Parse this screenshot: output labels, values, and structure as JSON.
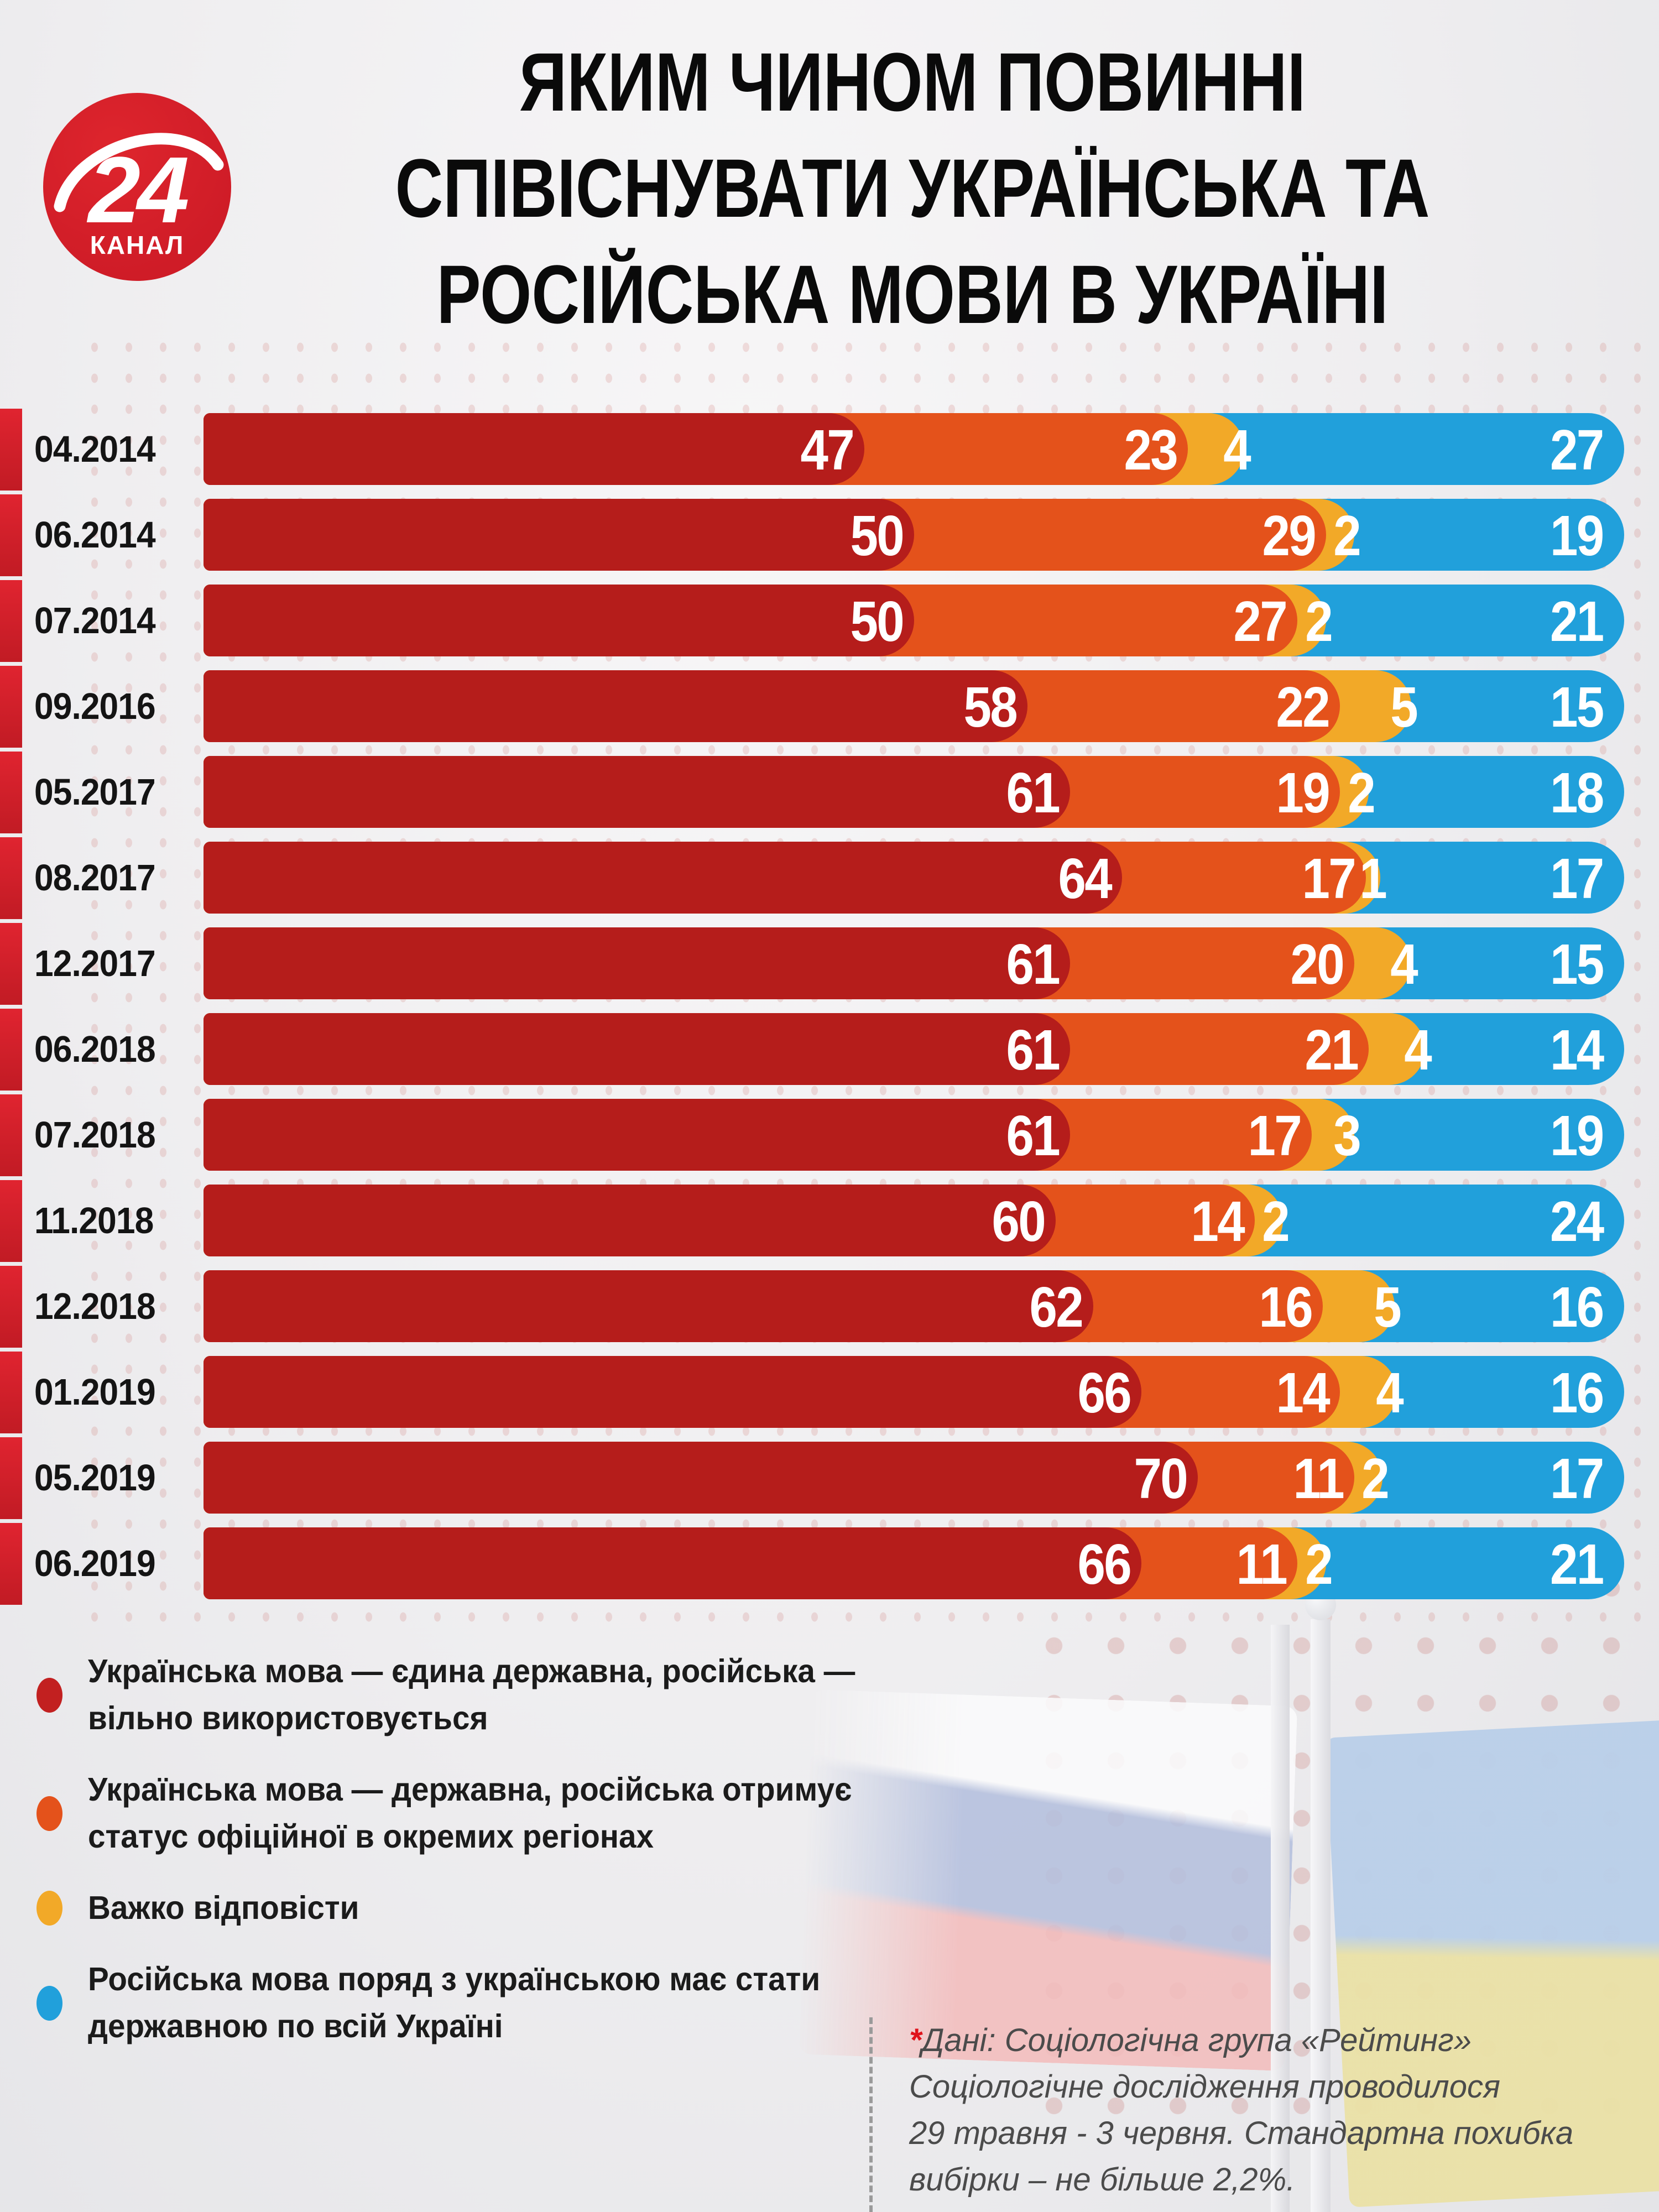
{
  "logo": {
    "number": "24",
    "channel": "КАНАЛ",
    "color": "#d6202b"
  },
  "title": {
    "line1": "ЯКИМ ЧИНОМ ПОВИННІ",
    "line2": "СПІВІСНУВАТИ УКРАЇНСЬКА ТА",
    "line3": "РОСІЙСЬКА МОВИ В УКРАЇНІ"
  },
  "chart_data": {
    "type": "bar",
    "orientation": "horizontal",
    "stacked": true,
    "unit": "percent",
    "xlim": [
      0,
      100
    ],
    "value_labels": "inside-end",
    "title": "ЯКИМ ЧИНОМ ПОВИННІ СПІВІСНУВАТИ УКРАЇНСЬКА ТА РОСІЙСЬКА МОВИ В УКРАЇНІ",
    "categories": [
      "04.2014",
      "06.2014",
      "07.2014",
      "09.2016",
      "05.2017",
      "08.2017",
      "12.2017",
      "06.2018",
      "07.2018",
      "11.2018",
      "12.2018",
      "01.2019",
      "05.2019",
      "06.2019"
    ],
    "series": [
      {
        "name": "Українська мова — єдина державна, російська — вільно використовується",
        "color": "#b51d1b",
        "values": [
          47,
          50,
          50,
          58,
          61,
          64,
          61,
          61,
          61,
          60,
          62,
          66,
          70,
          66
        ]
      },
      {
        "name": "Українська мова — державна, російська отримує статус офіційної в окремих регіонах",
        "color": "#e4521b",
        "values": [
          23,
          29,
          27,
          22,
          19,
          17,
          20,
          21,
          17,
          14,
          16,
          14,
          11,
          11
        ]
      },
      {
        "name": "Важко відповісти",
        "color": "#f2a928",
        "values": [
          4,
          2,
          2,
          5,
          2,
          1,
          4,
          4,
          3,
          2,
          5,
          4,
          2,
          2
        ]
      },
      {
        "name": "Російська мова поряд з українською має стати державною по всій Україні",
        "color": "#21a0db",
        "values": [
          27,
          19,
          21,
          15,
          18,
          17,
          15,
          14,
          19,
          24,
          16,
          16,
          17,
          21
        ]
      }
    ]
  },
  "legend": {
    "items": [
      {
        "label": "Українська мова — єдина державна, російська — вільно використовується",
        "color": "#c22020"
      },
      {
        "label": "Українська мова — державна, російська отримує статус офіційної в окремих регіонах",
        "color": "#e4521b"
      },
      {
        "label": "Важко відповісти",
        "color": "#f2a928"
      },
      {
        "label": "Російська мова поряд з українською має стати державною по всій Україні",
        "color": "#21a0db"
      }
    ]
  },
  "footnote": {
    "asterisk": "*",
    "lines": [
      "Дані:  Соціологічна група «Рейтинг»",
      "Соціологічне дослідження проводилося",
      "29 травня - 3 червня. Стандартна похибка",
      "вибірки – не більше 2,2%."
    ]
  },
  "background": {
    "decor": [
      "russian-flag",
      "ukrainian-flag",
      "halftone-dots",
      "flagpoles"
    ]
  }
}
